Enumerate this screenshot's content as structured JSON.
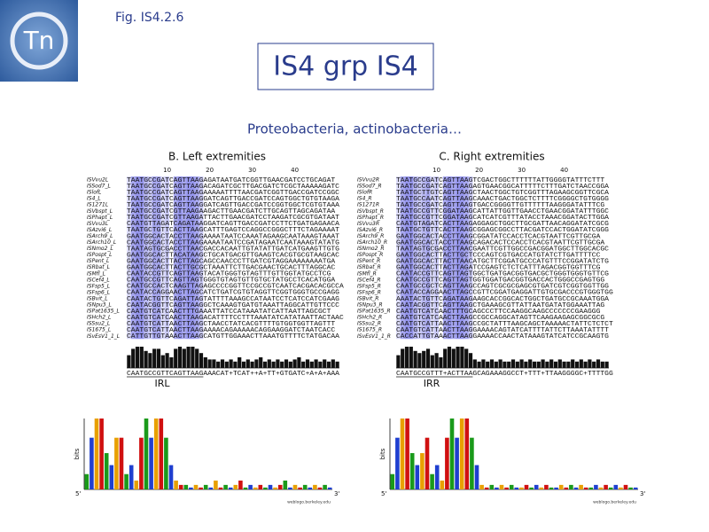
{
  "header": {
    "logo_text": "Tn",
    "fig_label": "Fig. IS4.2.6",
    "title": "IS4 grp IS4",
    "subtitle": "Proteobacteria, actinobacteria…"
  },
  "panels": [
    {
      "title": "B. Left extremities",
      "ruler": [
        10,
        20,
        30,
        40
      ],
      "rows": [
        {
          "name": "ISVvu2L",
          "seq": "TAATGCCGATCAGTTAAGAGATAATGATCGGTTGAACGATCCTGCAGAT"
        },
        {
          "name": "ISSod7_L",
          "seq": "TAATGCCGATCAGTTAAGACAGATCGCTTGACGATCTCGCTAAAAAGATC"
        },
        {
          "name": "ISlofL",
          "seq": "TAATGCCGATCAGTTAAGAAAAATTTTAACGATCGGTTGACCGATCCGGC"
        },
        {
          "name": "IS4_L",
          "seq": "TAATGCCGATCAGTTAAGGATCAGTTGACCGATCCAGTGGCTGTGTAAGA"
        },
        {
          "name": "IS1271L",
          "seq": "TAATGCCGATCAGTTAAGGATCAGTTGACCGATCCGGTGGCTCGTGTAAA"
        },
        {
          "name": "ISVbspt_L",
          "seq": "TAATGCCGATCGTTAAGAAGACTTGAACGATCTTGCAGTTAGCAGATAA"
        },
        {
          "name": "ISPhapt_L",
          "seq": "TAATGCCGATCGTTAAGATTACTTGAACGATCCTAAGATCGCGTGATAAT"
        },
        {
          "name": "ISVvu3L",
          "seq": "CAATGTTAGATCAGATAAGGATCAGTTGACCGATCCTTCTGATGAGAACA"
        },
        {
          "name": "ISAzvi6_L",
          "seq": "TAATGCTGTTCACTTAAGCATTTGAGTCCAGGCCGGGCTTTCTAGAAAAT"
        },
        {
          "name": "ISArch9_L",
          "seq": "GAATGGCACTACCTTAAGAAAATAATCCAAATAGAAGCAATAAAGTAAAT"
        },
        {
          "name": "ISArch10_L",
          "seq": "CAATGGCACTACCTTAAGAAAATAATCCGATAGAATCAATAAAGTATATG"
        },
        {
          "name": "ISNmo2_L",
          "seq": "TAATAGTGCGACCTTAACGACCACAATTGTATATTGATCATGAAGTTGTG"
        },
        {
          "name": "ISPospt_L",
          "seq": "GAATGGCACTTACATAAGCTGCATGACGTTGAAGTCACGTGCGTAAGCAC"
        },
        {
          "name": "ISPent_L",
          "seq": "GAATGGCACTTACTTAGCAGCCAACCCTTGATCGTAGGAAAAAAAATGA"
        },
        {
          "name": "ISRbat_L",
          "seq": "GAATGGCACTTACTTGCGCTAAATTCTTGACGAACTGCACTTTAGGCAC"
        },
        {
          "name": "ISMfl_L",
          "seq": "CAATACCGTTCAGTTAAGTACATGGGTGTAGTTTGTTGGTATGCCTCG"
        },
        {
          "name": "ISCef4_L",
          "seq": "CAATGCCGTTCAGTTAGTGGGTGTAGTGTTGTGCTATGCCTCACATGGA"
        },
        {
          "name": "ISFsp5_L",
          "seq": "CAATGCCACTCAAGTTAGAGCCCCGGTTCCGCCGTCAATCACGACACGCCA"
        },
        {
          "name": "ISFsp6_L",
          "seq": "CAATACCAGGAACTTAGCATCTGATCGTGTAGGTTCGGTGGGTGCCGAGG"
        },
        {
          "name": "ISBvit_L",
          "seq": "CAATACTGTTCAGATTAGTATTTTAAAGCCATAATCCTCATCCATCGAAG"
        },
        {
          "name": "ISNpu3_L",
          "seq": "CAATACGGTTCAGTTAAGGCTCAAAGTGATGTAAATTAGGCATTGTTCCC"
        },
        {
          "name": "ISPat1635_L",
          "seq": "CAATGTCATCAACTTTGAAATTATCCATAAATATCATTAATTAGCGCT"
        },
        {
          "name": "ISHch2_L",
          "seq": "CAATGTCATCAACTTAAGACATTTTCCTTTAAATATCATATAATTACTAAC"
        },
        {
          "name": "ISSsu2_L",
          "seq": "CAATGTCATTAACTTAAGCTAACCTATCACGTTTTGTGGTGGTTAGTTT"
        },
        {
          "name": "IS1675_L",
          "seq": "CAATGTCATTAACTTAAGAAAACAGAAAAACAGGAAGGATCTAATCACC"
        },
        {
          "name": "ISvEsV1_1_L",
          "seq": "CATTGTTGTAAACTTAAGCATGTTGGAAACTTAAATGTTTTCTATGACAA"
        }
      ],
      "conservation": [
        0.6,
        0.9,
        1,
        1,
        0.8,
        0.7,
        0.9,
        0.9,
        0.6,
        0.7,
        0.5,
        0.9,
        1,
        0.9,
        1,
        1,
        0.9,
        0.7,
        0.5,
        0.4,
        0.4,
        0.3,
        0.4,
        0.3,
        0.4,
        0.3,
        0.5,
        0.3,
        0.4,
        0.3,
        0.4,
        0.5,
        0.3,
        0.4,
        0.3,
        0.4,
        0.3,
        0.4,
        0.3,
        0.4,
        0.5,
        0.3,
        0.4,
        0.3,
        0.4,
        0.3,
        0.4,
        0.3,
        0.4,
        0.3
      ],
      "consensus": "CAATGCCGTTCAGTTAAGAAACAT+TCAT++A+TT+GTGATC+A+A+AAA",
      "ir_label": "IRL",
      "logo": {
        "axis_label": "bits",
        "five": "5'",
        "three": "3'",
        "credit": "weblogo.berkeley.edu"
      }
    },
    {
      "title": "C. Right extremities",
      "ruler": [
        10,
        20,
        30,
        40
      ],
      "rows": [
        {
          "name": "ISVvu2R",
          "seq": "TAATGCCGATCAGTTAAGTCGACTGGCTTTTTTATTGGGGTATTTCTTT"
        },
        {
          "name": "ISSod7_R",
          "seq": "TAATGCCGATCAGTTAAGAGTGAACGGCATTTTTCTTTGATCTAACCGGA"
        },
        {
          "name": "ISlofR",
          "seq": "TAATGCTTGTCAGTTAAGCTAACTGGCTGTCGGTTTAGAAGCGGTTCGCA"
        },
        {
          "name": "IS4_R",
          "seq": "TAATGCCAATCAGTTAAGCAAACTGACTGGCTCTTTTCGGGGCTGTGGGG"
        },
        {
          "name": "IS1271R",
          "seq": "TAATGCCGATCAGTTAAGTGACCGGGGTTGTTTTTTAAGGGATATTTCG"
        },
        {
          "name": "ISVbspt_R",
          "seq": "TAATGCCGTTCGGATAAGCATTATTGGTTGAACCTGAACGGATATTTGGC"
        },
        {
          "name": "ISPhapt_R",
          "seq": "TAATGCCGTTCGGATAAGCATCATCGTTTATACCTAAACGGATACTTGGA"
        },
        {
          "name": "ISVvu3R",
          "seq": "CAATGTAGATCACTTAAGAGGAGCTGGCTTGCGATTAACAGGATATCGCG"
        },
        {
          "name": "ISAzvi6_R",
          "seq": "TAATGCTGTTCACTTAAGCGGAGCGGCCTTACGATCCACTGGATATCGGG"
        },
        {
          "name": "ISArch9_R",
          "seq": "GAATGGCACTACCTTAAGCGGATATCCACCTCACGTAATTCGTTGCGA"
        },
        {
          "name": "ISArch10_R",
          "seq": "GAATGGCACTACCTTAAGCAGACACTCCACCTCACGTAATTCGTTGCGA"
        },
        {
          "name": "ISNmo2_R",
          "seq": "TAATAGTGCGACCTTAACGAATTCGTTGGCCGACGGATGGCTTGGCACGC"
        },
        {
          "name": "ISPospt_R",
          "seq": "GAATGGCACTTACTTGCTCCCAGTCGTGACCATGTATCTTGATTTTCC"
        },
        {
          "name": "ISPent_R",
          "seq": "GAATGGCACTTACTTAACATGCTTCGGATGCCCATGTTTCCGGATATCTG"
        },
        {
          "name": "ISRbat_R",
          "seq": "GAATGGCACTTACTTAGATCCGAGTCTCTCATTTAGACGGTGGTTTCG"
        },
        {
          "name": "ISMfl_R",
          "seq": "CAATACCGTTCAGTTAGTGGCTGATGACGGTGACGCTGGGTGGGTGTTCG"
        },
        {
          "name": "ISCef4_R",
          "seq": "CAATGCCGTTCAGTTAGTGGTGGATGACGGTGACCACTGGGCCGAGTGG"
        },
        {
          "name": "ISFsp5_R",
          "seq": "CAATGCCGCTCAGTTAAGCCAGTCGCGCGAGCGTGATCGTCGGTGGTTGG"
        },
        {
          "name": "ISFsp6_R",
          "seq": "CAATACCAGGAACTTAGCCGTTCGGATGAGGATTGTGCGACCCGTGGGTGG"
        },
        {
          "name": "ISBvit_R",
          "seq": "AAATACTGTTCAGATAAGAAGCACCGGCACTGGCTGATGCCGCAAATGGA"
        },
        {
          "name": "ISNpu3_R",
          "seq": "CAATACGGTTCAGTTAAGCTGAAAGCGTTATTAATGATATGGAAATTAG"
        },
        {
          "name": "ISPat1635_R",
          "seq": "CAATGTCATCAACTTTGCAGCCCTTCCAAGGCAAGCCCCCCCGAAGGG"
        },
        {
          "name": "ISHch2_R",
          "seq": "CAATGTCATCAACTTAAGCCGCCAGGCATAGTTCAAGAAGAGCGGCGCG"
        },
        {
          "name": "ISSsu2_R",
          "seq": "CAATGTCATTAACTTAAGCCGCTATTTAAGCAGCTAAAAACTATTCTCTCT"
        },
        {
          "name": "IS1675_R",
          "seq": "CAATGTCATTAACTTAAGGAAAACAGTATCATTTTATTCTTAAATATTTT"
        },
        {
          "name": "ISvEsV1_1_R",
          "seq": "CACCATTGTAAACTTAAGGAAAACCAACTATAAAGTATCATCCGCAAGTG"
        }
      ],
      "conservation": [
        0.6,
        0.9,
        1,
        1,
        0.8,
        0.7,
        0.8,
        0.9,
        0.6,
        0.7,
        0.5,
        0.9,
        1,
        0.9,
        1,
        1,
        0.9,
        0.7,
        0.4,
        0.3,
        0.4,
        0.3,
        0.4,
        0.3,
        0.4,
        0.3,
        0.3,
        0.4,
        0.3,
        0.4,
        0.3,
        0.4,
        0.3,
        0.3,
        0.4,
        0.3,
        0.4,
        0.3,
        0.4,
        0.3,
        0.3,
        0.4,
        0.3,
        0.4,
        0.3,
        0.4,
        0.3,
        0.4,
        0.3,
        0.3
      ],
      "consensus": "CAATGCCGTTT+ACTTAAGCAGAAAGGCCT+TTT+TTAAGGGGC+TTTTGG",
      "ir_label": "IRR",
      "logo": {
        "axis_label": "bits",
        "five": "5'",
        "three": "3'",
        "credit": "weblogo.berkeley.edu"
      }
    }
  ]
}
